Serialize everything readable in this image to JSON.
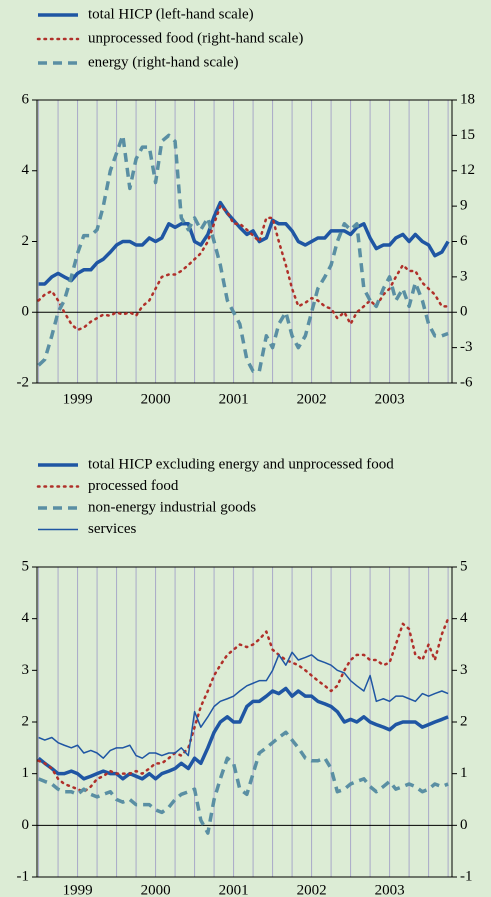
{
  "chart_data": [
    {
      "type": "line",
      "x": [
        1999,
        1999.08,
        1999.17,
        1999.25,
        1999.33,
        1999.42,
        1999.5,
        1999.58,
        1999.67,
        1999.75,
        1999.83,
        1999.92,
        2000,
        2000.08,
        2000.17,
        2000.25,
        2000.33,
        2000.42,
        2000.5,
        2000.58,
        2000.67,
        2000.75,
        2000.83,
        2000.92,
        2001,
        2001.08,
        2001.17,
        2001.25,
        2001.33,
        2001.42,
        2001.5,
        2001.58,
        2001.67,
        2001.75,
        2001.83,
        2001.92,
        2002,
        2002.08,
        2002.17,
        2002.25,
        2002.33,
        2002.42,
        2002.5,
        2002.58,
        2002.67,
        2002.75,
        2002.83,
        2002.92,
        2003,
        2003.08,
        2003.17,
        2003.25,
        2003.33,
        2003.42,
        2003.5,
        2003.58,
        2003.67,
        2003.75,
        2003.83,
        2003.92,
        2004,
        2004.08,
        2004.17,
        2004.25
      ],
      "xlim": [
        1998.98,
        2004.3
      ],
      "xticks": [
        {
          "value": 1999.5,
          "label": "1999"
        },
        {
          "value": 2000.5,
          "label": "2000"
        },
        {
          "value": 2001.5,
          "label": "2001"
        },
        {
          "value": 2002.5,
          "label": "2002"
        },
        {
          "value": 2003.5,
          "label": "2003"
        }
      ],
      "ylim": [
        -2,
        6
      ],
      "yticks": [
        -2,
        0,
        2,
        4,
        6
      ],
      "y2lim": [
        -6,
        18
      ],
      "y2ticks": [
        -6,
        -3,
        0,
        3,
        6,
        9,
        12,
        15,
        18
      ],
      "grid": true,
      "series": [
        {
          "name": "total HICP (left-hand scale)",
          "color": "#1f56a3",
          "style": "solid",
          "width": 3.5,
          "values": [
            0.8,
            0.8,
            1.0,
            1.1,
            1.0,
            0.9,
            1.1,
            1.2,
            1.2,
            1.4,
            1.5,
            1.7,
            1.9,
            2.0,
            2.0,
            1.9,
            1.9,
            2.1,
            2.0,
            2.1,
            2.5,
            2.4,
            2.5,
            2.5,
            2.0,
            1.9,
            2.2,
            2.7,
            3.1,
            2.8,
            2.6,
            2.4,
            2.2,
            2.3,
            2.0,
            2.1,
            2.6,
            2.5,
            2.5,
            2.3,
            2.0,
            1.9,
            2.0,
            2.1,
            2.1,
            2.3,
            2.3,
            2.3,
            2.2,
            2.4,
            2.5,
            2.1,
            1.8,
            1.9,
            1.9,
            2.1,
            2.2,
            2.0,
            2.2,
            2.0,
            1.9,
            1.6,
            1.7,
            2.0
          ]
        },
        {
          "name": "unprocessed food (right-hand scale)",
          "color": "#b0302a",
          "style": "dotted",
          "width": 2.5,
          "axis": "y2",
          "values": [
            1.0,
            1.5,
            1.8,
            1.0,
            0,
            -1,
            -1.5,
            -1.3,
            -0.8,
            -0.5,
            -0.2,
            -0.3,
            0,
            -0.2,
            0,
            -0.3,
            0.5,
            1,
            2,
            3,
            3.2,
            3.2,
            3.5,
            4,
            4.5,
            5,
            6,
            7.5,
            9,
            8.5,
            7.5,
            7.5,
            7,
            6.5,
            6,
            8,
            8,
            6,
            4,
            2,
            0.5,
            0.8,
            1.2,
            1.0,
            0.5,
            0.3,
            -0.5,
            0,
            -1,
            0,
            0.5,
            1,
            0.5,
            1.5,
            2,
            3,
            4,
            3.5,
            3.5,
            2.5,
            2,
            1.5,
            0.5,
            0.5
          ]
        },
        {
          "name": "energy (right-hand scale)",
          "color": "#5a8fa3",
          "style": "dashed",
          "width": 3.5,
          "axis": "y2",
          "values": [
            -4.5,
            -4,
            -2,
            0,
            1,
            3,
            5,
            6.5,
            6.5,
            7,
            9,
            12,
            13.5,
            15,
            10.5,
            13,
            14,
            14,
            11,
            14.5,
            15,
            14.5,
            8,
            7,
            8,
            7,
            8,
            6,
            4,
            1,
            0,
            -1,
            -4,
            -5,
            -5,
            -2,
            -3,
            -1,
            0,
            -2,
            -3,
            -2,
            0,
            2,
            3,
            4,
            6,
            7.5,
            7,
            7.5,
            2,
            1,
            0.5,
            2,
            3,
            1,
            2,
            0.5,
            2.5,
            1,
            -1,
            -2,
            -2,
            -1.8
          ]
        }
      ]
    },
    {
      "type": "line",
      "x": [
        1999,
        1999.08,
        1999.17,
        1999.25,
        1999.33,
        1999.42,
        1999.5,
        1999.58,
        1999.67,
        1999.75,
        1999.83,
        1999.92,
        2000,
        2000.08,
        2000.17,
        2000.25,
        2000.33,
        2000.42,
        2000.5,
        2000.58,
        2000.67,
        2000.75,
        2000.83,
        2000.92,
        2001,
        2001.08,
        2001.17,
        2001.25,
        2001.33,
        2001.42,
        2001.5,
        2001.58,
        2001.67,
        2001.75,
        2001.83,
        2001.92,
        2002,
        2002.08,
        2002.17,
        2002.25,
        2002.33,
        2002.42,
        2002.5,
        2002.58,
        2002.67,
        2002.75,
        2002.83,
        2002.92,
        2003,
        2003.08,
        2003.17,
        2003.25,
        2003.33,
        2003.42,
        2003.5,
        2003.58,
        2003.67,
        2003.75,
        2003.83,
        2003.92,
        2004,
        2004.08,
        2004.17,
        2004.25
      ],
      "xlim": [
        1998.98,
        2004.3
      ],
      "xticks": [
        {
          "value": 1999.5,
          "label": "1999"
        },
        {
          "value": 2000.5,
          "label": "2000"
        },
        {
          "value": 2001.5,
          "label": "2001"
        },
        {
          "value": 2002.5,
          "label": "2002"
        },
        {
          "value": 2003.5,
          "label": "2003"
        }
      ],
      "ylim": [
        -1,
        5
      ],
      "yticks": [
        -1,
        0,
        1,
        2,
        3,
        4,
        5
      ],
      "y2lim": [
        -1,
        5
      ],
      "y2ticks": [
        -1,
        0,
        1,
        2,
        3,
        4,
        5
      ],
      "grid": true,
      "series": [
        {
          "name": "total HICP excluding energy and unprocessed food",
          "color": "#1f56a3",
          "style": "solid",
          "width": 3.5,
          "values": [
            1.3,
            1.2,
            1.1,
            1.0,
            1.0,
            1.05,
            1.0,
            0.9,
            0.95,
            1.0,
            1.05,
            1.0,
            1.0,
            0.9,
            1.0,
            0.95,
            0.9,
            1.0,
            0.9,
            1.0,
            1.05,
            1.1,
            1.2,
            1.1,
            1.3,
            1.2,
            1.5,
            1.8,
            2.0,
            2.1,
            2.0,
            2.0,
            2.3,
            2.4,
            2.4,
            2.5,
            2.6,
            2.55,
            2.65,
            2.5,
            2.6,
            2.5,
            2.5,
            2.4,
            2.35,
            2.3,
            2.2,
            2.0,
            2.05,
            2.0,
            2.1,
            2.0,
            1.95,
            1.9,
            1.85,
            1.95,
            2.0,
            2.0,
            2.0,
            1.9,
            1.95,
            2.0,
            2.05,
            2.1
          ]
        },
        {
          "name": "processed food",
          "color": "#b0302a",
          "style": "dotted",
          "width": 2.5,
          "values": [
            1.25,
            1.2,
            1.1,
            0.9,
            0.8,
            0.75,
            0.7,
            0.65,
            0.75,
            0.9,
            0.95,
            1.05,
            1.0,
            1.0,
            1.0,
            1.05,
            1.0,
            1.1,
            1.2,
            1.2,
            1.3,
            1.4,
            1.35,
            1.5,
            1.9,
            2.3,
            2.6,
            2.9,
            3.1,
            3.3,
            3.4,
            3.5,
            3.45,
            3.5,
            3.6,
            3.75,
            3.4,
            3.3,
            3.2,
            3.15,
            3.1,
            3.0,
            2.9,
            2.8,
            2.7,
            2.6,
            2.7,
            3.0,
            3.2,
            3.3,
            3.3,
            3.2,
            3.2,
            3.1,
            3.15,
            3.5,
            3.9,
            3.8,
            3.3,
            3.2,
            3.5,
            3.2,
            3.7,
            4.0
          ]
        },
        {
          "name": "non-energy industrial goods",
          "color": "#5a8fa3",
          "style": "dashed",
          "width": 3.5,
          "values": [
            0.9,
            0.85,
            0.8,
            0.7,
            0.65,
            0.65,
            0.6,
            0.7,
            0.6,
            0.55,
            0.6,
            0.65,
            0.5,
            0.45,
            0.5,
            0.4,
            0.4,
            0.4,
            0.3,
            0.25,
            0.35,
            0.5,
            0.6,
            0.65,
            0.7,
            0.1,
            -0.15,
            0.5,
            0.9,
            1.3,
            1.2,
            0.7,
            0.6,
            1.0,
            1.4,
            1.5,
            1.6,
            1.7,
            1.8,
            1.65,
            1.5,
            1.3,
            1.25,
            1.25,
            1.3,
            1.1,
            0.65,
            0.7,
            0.8,
            0.85,
            0.9,
            0.75,
            0.65,
            0.75,
            0.85,
            0.7,
            0.75,
            0.8,
            0.75,
            0.65,
            0.7,
            0.8,
            0.75,
            0.8
          ]
        },
        {
          "name": "services",
          "color": "#1f56a3",
          "style": "solid",
          "width": 1.5,
          "values": [
            1.7,
            1.65,
            1.7,
            1.6,
            1.55,
            1.5,
            1.55,
            1.4,
            1.45,
            1.4,
            1.3,
            1.45,
            1.5,
            1.5,
            1.55,
            1.35,
            1.3,
            1.4,
            1.4,
            1.35,
            1.4,
            1.4,
            1.5,
            1.35,
            2.2,
            1.9,
            2.1,
            2.3,
            2.4,
            2.45,
            2.5,
            2.6,
            2.7,
            2.75,
            2.8,
            2.8,
            3.0,
            3.3,
            3.1,
            3.35,
            3.2,
            3.25,
            3.3,
            3.2,
            3.15,
            3.1,
            3.0,
            2.95,
            2.8,
            2.7,
            2.6,
            2.9,
            2.4,
            2.45,
            2.4,
            2.5,
            2.5,
            2.45,
            2.4,
            2.55,
            2.5,
            2.55,
            2.6,
            2.55
          ]
        }
      ]
    }
  ]
}
